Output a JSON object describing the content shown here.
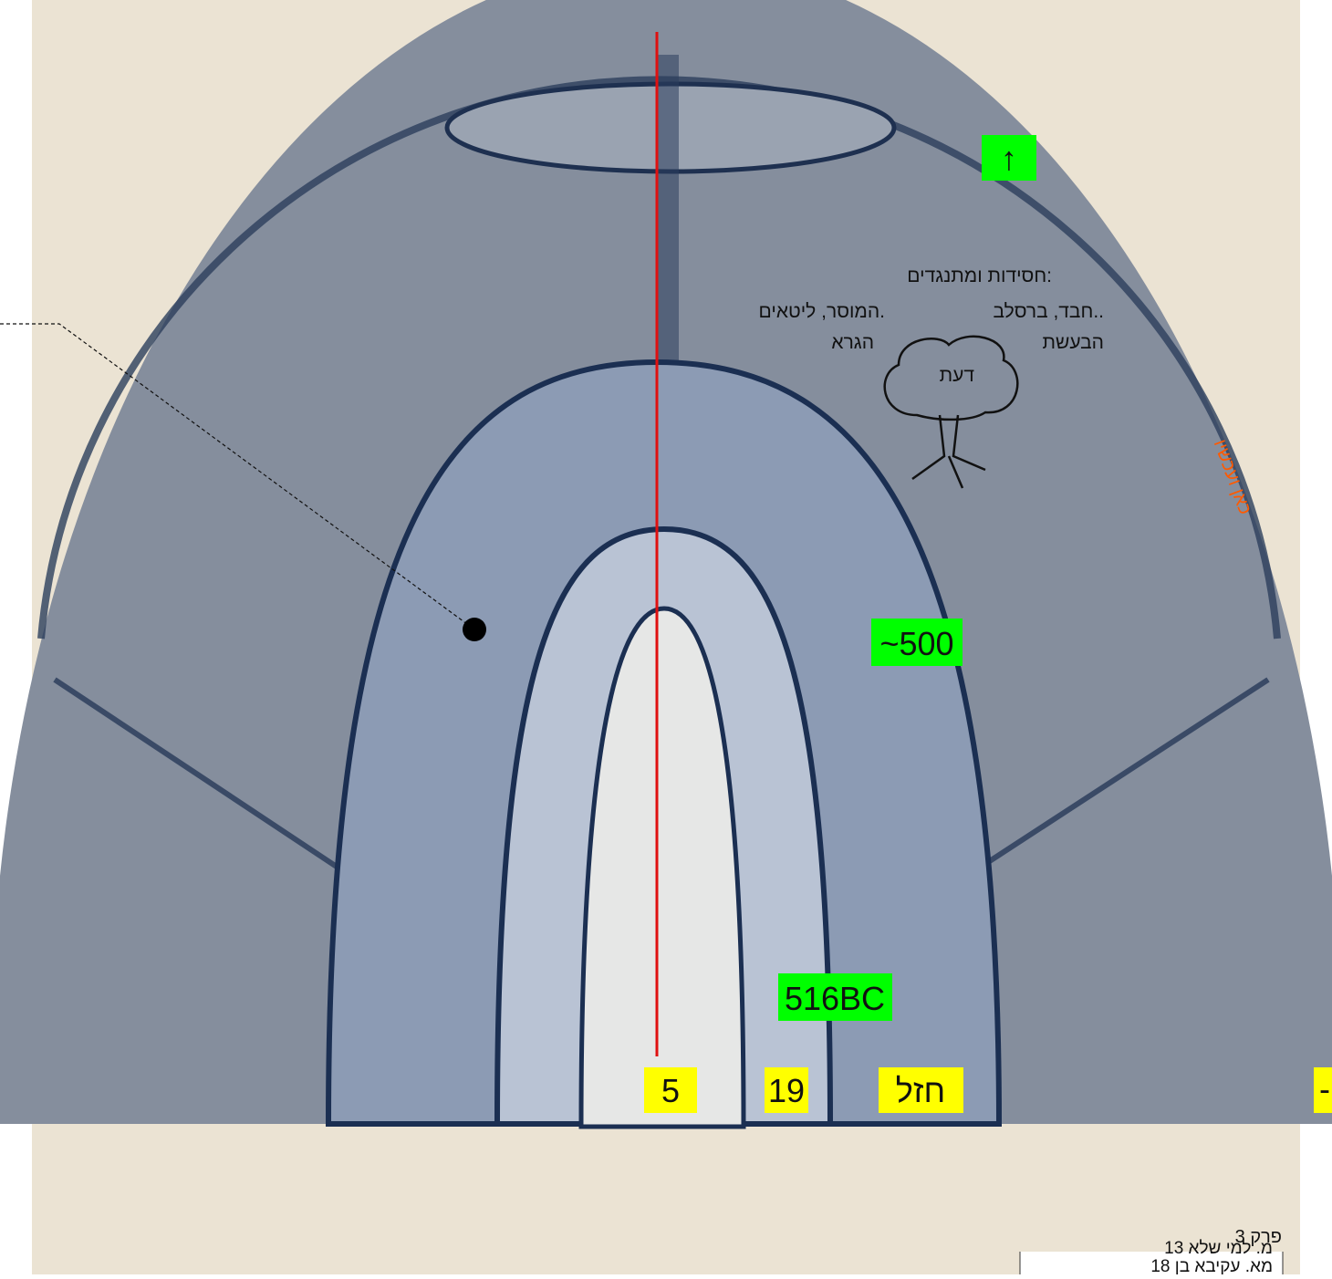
{
  "labels": {
    "hasidut": "חסידות ומתנגדים:",
    "chabad": "חבד, ברסלב..",
    "musar": "המוסר, ליטאים.",
    "besht": "הבעשת",
    "gra": "הגרא",
    "daat": "דעת",
    "here_now": "כאן ועכשיו"
  },
  "markers": {
    "arrow": "↑",
    "about_500": "~500",
    "bc_516": "516BC",
    "five": "5",
    "nineteen": "19",
    "chazal": "חזל",
    "dash": "-"
  },
  "notes": {
    "chapter": "פרק 3",
    "rows": [
      "מ. למי שלא 13",
      "מא. עקיבא בן 18"
    ]
  }
}
